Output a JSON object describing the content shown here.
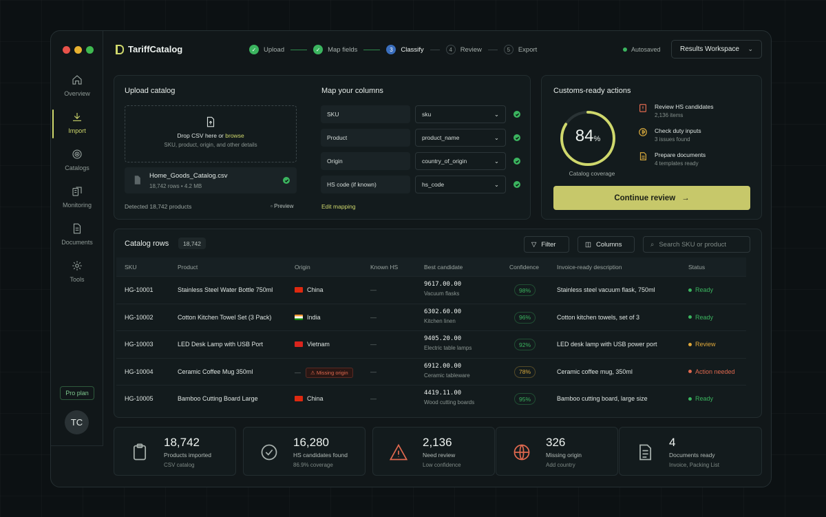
{
  "app": {
    "name": "TariffCatalog",
    "autosave": "Autosaved",
    "workspace": "Results Workspace"
  },
  "steps": [
    {
      "n": "1",
      "label": "Upload",
      "state": "done"
    },
    {
      "n": "2",
      "label": "Map fields",
      "state": "done"
    },
    {
      "n": "3",
      "label": "Classify",
      "state": "current"
    },
    {
      "n": "4",
      "label": "Review",
      "state": "todo"
    },
    {
      "n": "5",
      "label": "Export",
      "state": "todo"
    }
  ],
  "sidebar": {
    "items": [
      {
        "label": "Overview",
        "icon": "home-icon"
      },
      {
        "label": "Import",
        "icon": "download-icon",
        "active": true
      },
      {
        "label": "Catalogs",
        "icon": "target-icon"
      },
      {
        "label": "Monitoring",
        "icon": "monitoring-icon"
      },
      {
        "label": "Documents",
        "icon": "document-icon"
      },
      {
        "label": "Tools",
        "icon": "gear-icon"
      }
    ],
    "plan": "Pro plan",
    "avatar": "TC"
  },
  "upload": {
    "title": "Upload catalog",
    "drop_prefix": "Drop CSV here or",
    "drop_link": "browse",
    "drop_sub": "SKU, product, origin, and other details",
    "file_name": "Home_Goods_Catalog.csv",
    "file_rows": "18,742 rows",
    "file_size": "4.2 MB",
    "detected": "Detected 18,742 products",
    "preview": "Preview"
  },
  "mapping": {
    "title": "Map your columns",
    "rows": [
      {
        "label": "SKU",
        "value": "sku"
      },
      {
        "label": "Product",
        "value": "product_name"
      },
      {
        "label": "Origin",
        "value": "country_of_origin"
      },
      {
        "label": "HS code (if known)",
        "value": "hs_code"
      }
    ],
    "edit": "Edit mapping"
  },
  "actions": {
    "title": "Customs-ready actions",
    "coverage_value": "84",
    "coverage_unit": "%",
    "coverage_fraction": 0.84,
    "coverage_label": "Catalog coverage",
    "items": [
      {
        "title": "Review HS candidates",
        "sub": "2,136 items",
        "color": "#e0694f"
      },
      {
        "title": "Check duty inputs",
        "sub": "3 issues found",
        "color": "#d8a93c"
      },
      {
        "title": "Prepare documents",
        "sub": "4 templates ready",
        "color": "#d8a93c"
      }
    ],
    "cta": "Continue review"
  },
  "catalog": {
    "title": "Catalog rows",
    "count": "18,742",
    "filter": "Filter",
    "columns": "Columns",
    "search_placeholder": "Search SKU or product",
    "headers": [
      "SKU",
      "Product",
      "Origin",
      "Known HS",
      "Best candidate",
      "Confidence",
      "Invoice-ready description",
      "Status"
    ],
    "rows": [
      {
        "sku": "HG-10001",
        "product": "Stainless Steel Water Bottle 750ml",
        "origin": "China",
        "flag": "cn",
        "known": "—",
        "code": "9617.00.00",
        "cat": "Vacuum flasks",
        "conf": "98%",
        "conf_color": "#3bb45f",
        "desc": "Stainless steel vacuum flask, 750ml",
        "status": "Ready",
        "status_color": "#3bb45f"
      },
      {
        "sku": "HG-10002",
        "product": "Cotton Kitchen Towel Set (3 Pack)",
        "origin": "India",
        "flag": "in",
        "known": "—",
        "code": "6302.60.00",
        "cat": "Kitchen linen",
        "conf": "96%",
        "conf_color": "#3bb45f",
        "desc": "Cotton kitchen towels, set of 3",
        "status": "Ready",
        "status_color": "#3bb45f"
      },
      {
        "sku": "HG-10003",
        "product": "LED Desk Lamp with USB Port",
        "origin": "Vietnam",
        "flag": "vn",
        "known": "—",
        "code": "9405.20.00",
        "cat": "Electric table lamps",
        "conf": "92%",
        "conf_color": "#3bb45f",
        "desc": "LED desk lamp with USB power port",
        "status": "Review",
        "status_color": "#e0a83a"
      },
      {
        "sku": "HG-10004",
        "product": "Ceramic Coffee Mug 350ml",
        "origin": "Missing origin",
        "flag": "none",
        "known": "—",
        "code": "6912.00.00",
        "cat": "Ceramic tableware",
        "conf": "78%",
        "conf_color": "#d8a93c",
        "desc": "Ceramic coffee mug, 350ml",
        "status": "Action needed",
        "status_color": "#e0694f"
      },
      {
        "sku": "HG-10005",
        "product": "Bamboo Cutting Board Large",
        "origin": "China",
        "flag": "cn",
        "known": "—",
        "code": "4419.11.00",
        "cat": "Wood cutting boards",
        "conf": "95%",
        "conf_color": "#3bb45f",
        "desc": "Bamboo cutting board, large size",
        "status": "Ready",
        "status_color": "#3bb45f"
      }
    ]
  },
  "stats": [
    {
      "n": "18,742",
      "l": "Products imported",
      "s": "CSV catalog",
      "icon": "clipboard-icon"
    },
    {
      "n": "16,280",
      "l": "HS candidates found",
      "s": "86.9% coverage",
      "icon": "check-circle-icon"
    },
    {
      "n": "2,136",
      "l": "Need review",
      "s": "Low confidence",
      "icon": "warning-icon"
    },
    {
      "n": "326",
      "l": "Missing origin",
      "s": "Add country",
      "icon": "globe-icon"
    },
    {
      "n": "4",
      "l": "Documents ready",
      "s": "Invoice, Packing List",
      "icon": "document-icon"
    }
  ],
  "colors": {
    "accent": "#cfd86c",
    "success": "#3bb45f",
    "warning": "#d8a93c",
    "danger": "#e0694f"
  }
}
